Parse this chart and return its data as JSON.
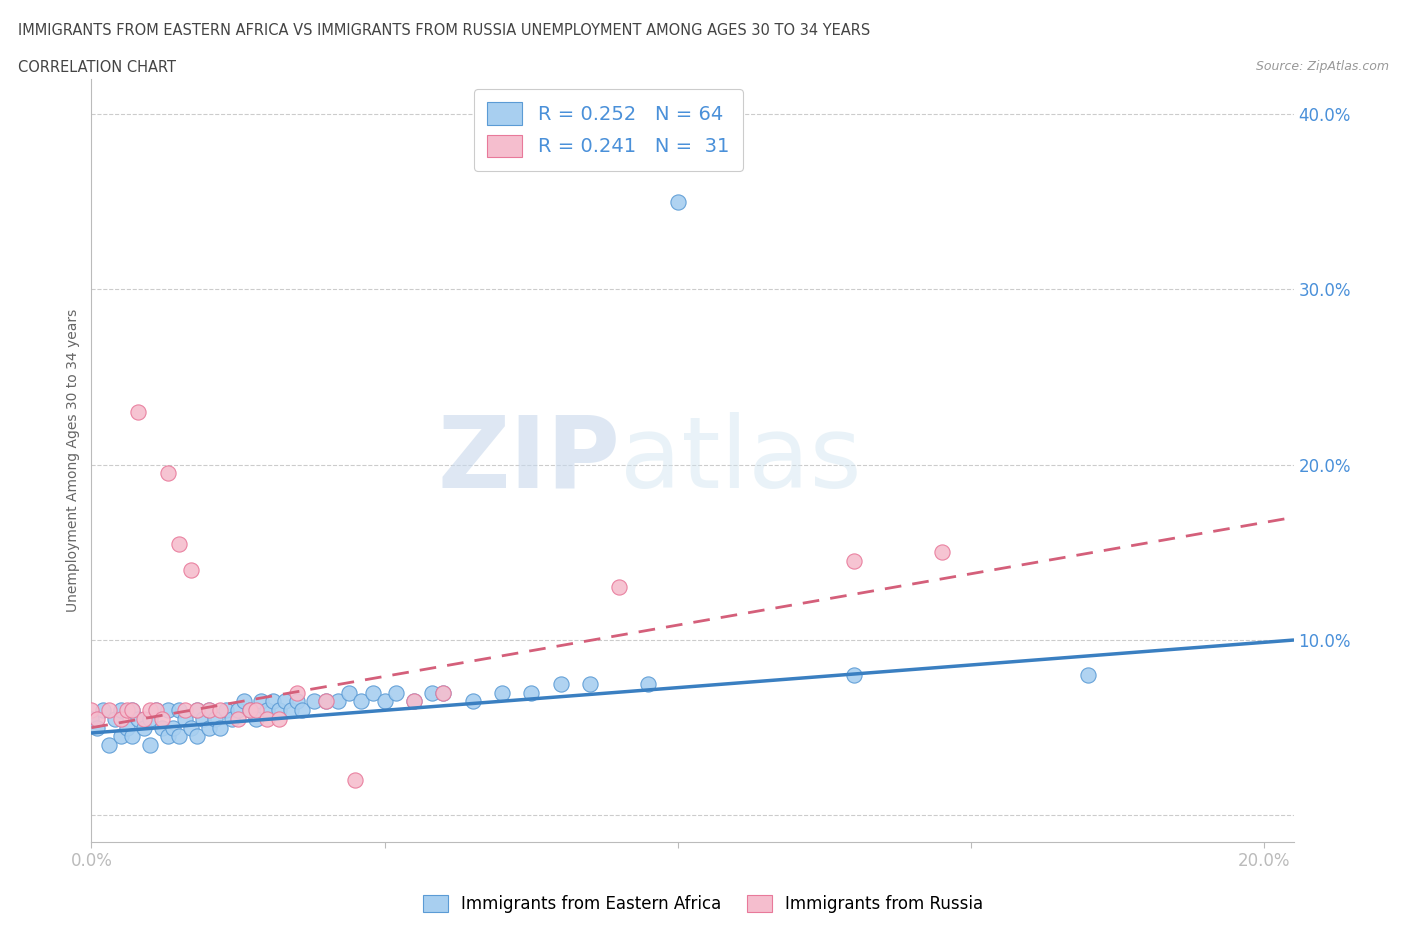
{
  "title_line1": "IMMIGRANTS FROM EASTERN AFRICA VS IMMIGRANTS FROM RUSSIA UNEMPLOYMENT AMONG AGES 30 TO 34 YEARS",
  "title_line2": "CORRELATION CHART",
  "source": "Source: ZipAtlas.com",
  "ylabel": "Unemployment Among Ages 30 to 34 years",
  "xlim": [
    0.0,
    0.205
  ],
  "ylim": [
    -0.015,
    0.42
  ],
  "x_ticks": [
    0.0,
    0.05,
    0.1,
    0.15,
    0.2
  ],
  "x_tick_labels": [
    "0.0%",
    "",
    "",
    "",
    "20.0%"
  ],
  "y_ticks": [
    0.0,
    0.1,
    0.2,
    0.3,
    0.4
  ],
  "y_tick_labels": [
    "",
    "10.0%",
    "20.0%",
    "30.0%",
    "40.0%"
  ],
  "blue_color": "#a8cff0",
  "pink_color": "#f5bece",
  "blue_edge_color": "#5b9bd5",
  "pink_edge_color": "#e8799a",
  "blue_line_color": "#3a7fc1",
  "pink_line_color": "#d45f7a",
  "watermark_zip": "ZIP",
  "watermark_atlas": "atlas",
  "R_blue": 0.252,
  "N_blue": 64,
  "R_pink": 0.241,
  "N_pink": 31,
  "blue_scatter_x": [
    0.0,
    0.001,
    0.002,
    0.003,
    0.004,
    0.005,
    0.005,
    0.006,
    0.007,
    0.007,
    0.008,
    0.009,
    0.01,
    0.01,
    0.011,
    0.012,
    0.013,
    0.013,
    0.014,
    0.015,
    0.015,
    0.016,
    0.017,
    0.018,
    0.018,
    0.019,
    0.02,
    0.02,
    0.021,
    0.022,
    0.023,
    0.024,
    0.025,
    0.026,
    0.027,
    0.028,
    0.029,
    0.03,
    0.031,
    0.032,
    0.033,
    0.034,
    0.035,
    0.036,
    0.038,
    0.04,
    0.042,
    0.044,
    0.046,
    0.048,
    0.05,
    0.052,
    0.055,
    0.058,
    0.06,
    0.065,
    0.07,
    0.075,
    0.08,
    0.085,
    0.095,
    0.1,
    0.13,
    0.17
  ],
  "blue_scatter_y": [
    0.055,
    0.05,
    0.06,
    0.04,
    0.055,
    0.045,
    0.06,
    0.05,
    0.045,
    0.06,
    0.055,
    0.05,
    0.04,
    0.055,
    0.06,
    0.05,
    0.045,
    0.06,
    0.05,
    0.045,
    0.06,
    0.055,
    0.05,
    0.045,
    0.06,
    0.055,
    0.05,
    0.06,
    0.055,
    0.05,
    0.06,
    0.055,
    0.06,
    0.065,
    0.06,
    0.055,
    0.065,
    0.06,
    0.065,
    0.06,
    0.065,
    0.06,
    0.065,
    0.06,
    0.065,
    0.065,
    0.065,
    0.07,
    0.065,
    0.07,
    0.065,
    0.07,
    0.065,
    0.07,
    0.07,
    0.065,
    0.07,
    0.07,
    0.075,
    0.075,
    0.075,
    0.35,
    0.08,
    0.08
  ],
  "pink_scatter_x": [
    0.0,
    0.001,
    0.003,
    0.005,
    0.006,
    0.007,
    0.008,
    0.009,
    0.01,
    0.011,
    0.012,
    0.013,
    0.015,
    0.016,
    0.017,
    0.018,
    0.02,
    0.022,
    0.025,
    0.027,
    0.028,
    0.03,
    0.032,
    0.035,
    0.04,
    0.045,
    0.055,
    0.06,
    0.09,
    0.13,
    0.145
  ],
  "pink_scatter_y": [
    0.06,
    0.055,
    0.06,
    0.055,
    0.06,
    0.06,
    0.23,
    0.055,
    0.06,
    0.06,
    0.055,
    0.195,
    0.155,
    0.06,
    0.14,
    0.06,
    0.06,
    0.06,
    0.055,
    0.06,
    0.06,
    0.055,
    0.055,
    0.07,
    0.065,
    0.02,
    0.065,
    0.07,
    0.13,
    0.145,
    0.15
  ],
  "blue_trend_x": [
    0.0,
    0.205
  ],
  "blue_trend_y": [
    0.047,
    0.1
  ],
  "pink_trend_x": [
    0.0,
    0.205
  ],
  "pink_trend_y": [
    0.05,
    0.17
  ]
}
